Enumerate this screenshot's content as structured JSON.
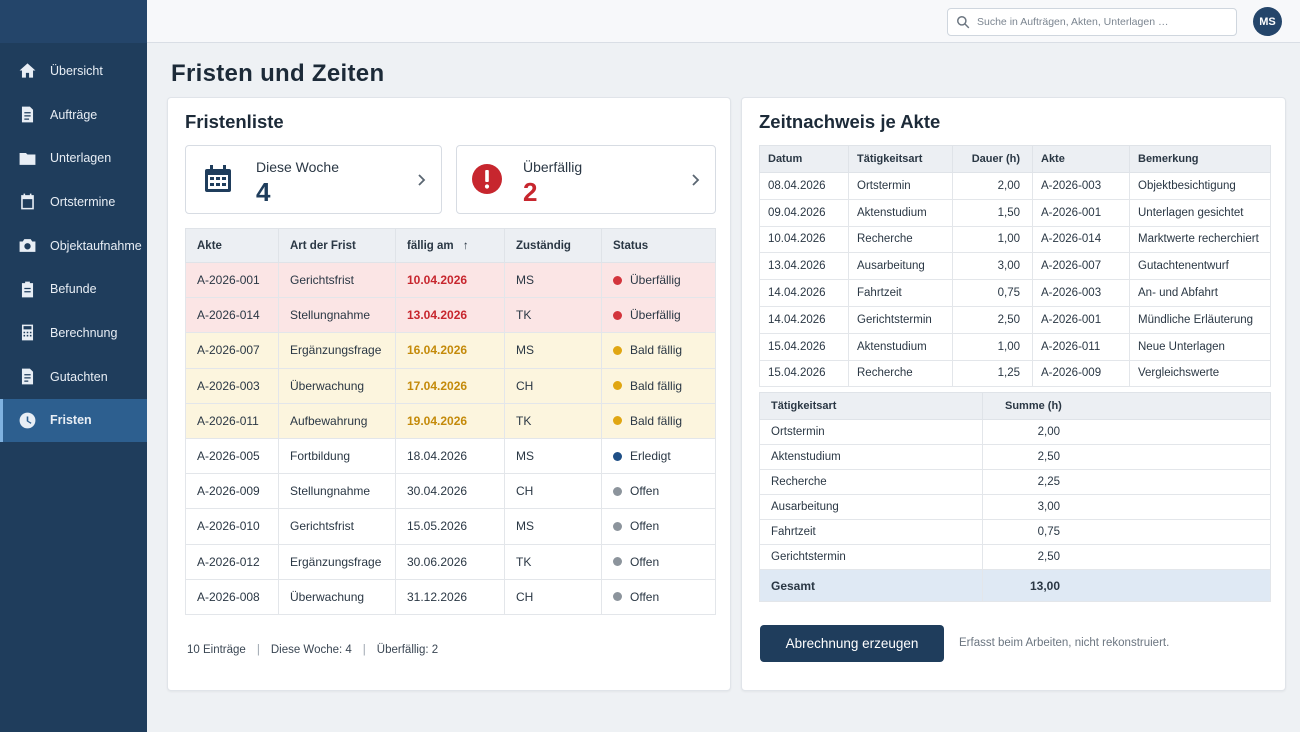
{
  "sidebar": {
    "items": [
      {
        "label": "Übersicht",
        "icon": "home-icon"
      },
      {
        "label": "Aufträge",
        "icon": "document-icon"
      },
      {
        "label": "Unterlagen",
        "icon": "folder-icon"
      },
      {
        "label": "Ortstermine",
        "icon": "calendar-icon"
      },
      {
        "label": "Objektaufnahme",
        "icon": "camera-icon"
      },
      {
        "label": "Befunde",
        "icon": "clipboard-icon"
      },
      {
        "label": "Berechnung",
        "icon": "calculator-icon"
      },
      {
        "label": "Gutachten",
        "icon": "report-icon"
      },
      {
        "label": "Fristen",
        "icon": "clock-icon"
      }
    ],
    "active": "Fristen"
  },
  "topbar": {
    "search_placeholder": "Suche in Aufträgen, Akten, Unterlagen …",
    "avatar_initials": "MS"
  },
  "page": {
    "title": "Fristen und Zeiten"
  },
  "fristen": {
    "title": "Fristenliste",
    "kpi_week": {
      "label": "Diese Woche",
      "value": "4"
    },
    "kpi_overdue": {
      "label": "Überfällig",
      "value": "2"
    },
    "columns": [
      "Akte",
      "Art der Frist",
      "fällig am",
      "Zuständig",
      "Status"
    ],
    "sort_indicator": "↑",
    "rows": [
      {
        "akte": "A-2026-001",
        "art": "Gerichtsfrist",
        "faellig": "10.04.2026",
        "zust": "MS",
        "status": "Überfällig",
        "kind": "over"
      },
      {
        "akte": "A-2026-014",
        "art": "Stellungnahme",
        "faellig": "13.04.2026",
        "zust": "TK",
        "status": "Überfällig",
        "kind": "over"
      },
      {
        "akte": "A-2026-007",
        "art": "Ergänzungsfrage",
        "faellig": "16.04.2026",
        "zust": "MS",
        "status": "Bald fällig",
        "kind": "soon"
      },
      {
        "akte": "A-2026-003",
        "art": "Überwachung",
        "faellig": "17.04.2026",
        "zust": "CH",
        "status": "Bald fällig",
        "kind": "soon"
      },
      {
        "akte": "A-2026-011",
        "art": "Aufbewahrung",
        "faellig": "19.04.2026",
        "zust": "TK",
        "status": "Bald fällig",
        "kind": "soon"
      },
      {
        "akte": "A-2026-005",
        "art": "Fortbildung",
        "faellig": "18.04.2026",
        "zust": "MS",
        "status": "Erledigt",
        "kind": "done"
      },
      {
        "akte": "A-2026-009",
        "art": "Stellungnahme",
        "faellig": "30.04.2026",
        "zust": "CH",
        "status": "Offen",
        "kind": "open"
      },
      {
        "akte": "A-2026-010",
        "art": "Gerichtsfrist",
        "faellig": "15.05.2026",
        "zust": "MS",
        "status": "Offen",
        "kind": "open"
      },
      {
        "akte": "A-2026-012",
        "art": "Ergänzungsfrage",
        "faellig": "30.06.2026",
        "zust": "TK",
        "status": "Offen",
        "kind": "open"
      },
      {
        "akte": "A-2026-008",
        "art": "Überwachung",
        "faellig": "31.12.2026",
        "zust": "CH",
        "status": "Offen",
        "kind": "open"
      }
    ],
    "footer": {
      "entries": "10 Einträge",
      "week": "Diese Woche: 4",
      "overdue": "Überfällig: 2",
      "sep": "|"
    }
  },
  "zeit": {
    "title": "Zeitnachweis je Akte",
    "columns": [
      "Datum",
      "Tätigkeitsart",
      "Dauer (h)",
      "Akte",
      "Bemerkung"
    ],
    "rows": [
      [
        "08.04.2026",
        "Ortstermin",
        "2,00",
        "A-2026-003",
        "Objektbesichtigung"
      ],
      [
        "09.04.2026",
        "Aktenstudium",
        "1,50",
        "A-2026-001",
        "Unterlagen gesichtet"
      ],
      [
        "10.04.2026",
        "Recherche",
        "1,00",
        "A-2026-014",
        "Marktwerte recherchiert"
      ],
      [
        "13.04.2026",
        "Ausarbeitung",
        "3,00",
        "A-2026-007",
        "Gutachtenentwurf"
      ],
      [
        "14.04.2026",
        "Fahrtzeit",
        "0,75",
        "A-2026-003",
        "An- und Abfahrt"
      ],
      [
        "14.04.2026",
        "Gerichtstermin",
        "2,50",
        "A-2026-001",
        "Mündliche Erläuterung"
      ],
      [
        "15.04.2026",
        "Aktenstudium",
        "1,00",
        "A-2026-011",
        "Neue Unterlagen"
      ],
      [
        "15.04.2026",
        "Recherche",
        "1,25",
        "A-2026-009",
        "Vergleichswerte"
      ]
    ],
    "summary_columns": [
      "Tätigkeitsart",
      "Summe (h)"
    ],
    "summary": [
      [
        "Ortstermin",
        "2,00"
      ],
      [
        "Aktenstudium",
        "2,50"
      ],
      [
        "Recherche",
        "2,25"
      ],
      [
        "Ausarbeitung",
        "3,00"
      ],
      [
        "Fahrtzeit",
        "0,75"
      ],
      [
        "Gerichtstermin",
        "2,50"
      ]
    ],
    "total_label": "Gesamt",
    "total_value": "13,00",
    "button": "Abrechnung erzeugen",
    "note": "Erfasst beim Arbeiten, nicht rekonstruiert."
  }
}
